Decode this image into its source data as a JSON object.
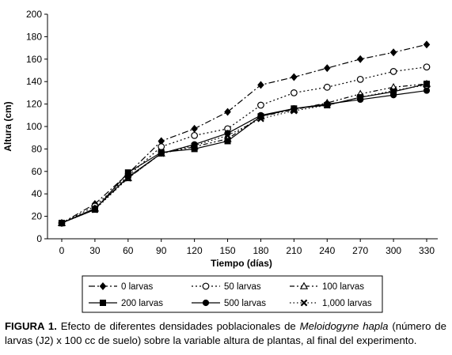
{
  "chart_data": {
    "type": "line",
    "xlabel": "Tiempo (días)",
    "ylabel": "Altura (cm)",
    "x": [
      0,
      30,
      60,
      90,
      120,
      150,
      180,
      210,
      240,
      270,
      300,
      330
    ],
    "xlim": [
      0,
      330
    ],
    "ylim": [
      0,
      200
    ],
    "yticks": [
      0,
      20,
      40,
      60,
      80,
      100,
      120,
      140,
      160,
      180,
      200
    ],
    "grid": false,
    "legend_position": "bottom",
    "series": [
      {
        "name": "0 larvas",
        "marker": "diamond",
        "dash": "8,3,2,3",
        "values": [
          14,
          31,
          58,
          87,
          98,
          113,
          137,
          144,
          152,
          160,
          166,
          173
        ]
      },
      {
        "name": "50 larvas",
        "marker": "circle-open",
        "dash": "2,3",
        "values": [
          14,
          29,
          56,
          82,
          92,
          98,
          119,
          130,
          135,
          142,
          149,
          153
        ]
      },
      {
        "name": "100 larvas",
        "marker": "triangle-open",
        "dash": "6,3,2,3,2,3",
        "values": [
          14,
          27,
          54,
          76,
          82,
          89,
          109,
          115,
          121,
          129,
          135,
          138
        ]
      },
      {
        "name": "200 larvas",
        "marker": "square",
        "dash": "",
        "values": [
          14,
          26,
          59,
          77,
          80,
          87,
          109,
          116,
          119,
          126,
          131,
          138
        ]
      },
      {
        "name": "500 larvas",
        "marker": "circle",
        "dash": "",
        "values": [
          14,
          27,
          55,
          76,
          84,
          94,
          110,
          116,
          120,
          124,
          128,
          132
        ]
      },
      {
        "name": "1,000 larvas",
        "marker": "x",
        "dash": "1.5,3",
        "values": [
          14,
          26,
          54,
          76,
          83,
          92,
          107,
          114,
          119,
          126,
          132,
          137
        ]
      }
    ]
  },
  "caption": {
    "label": "FIGURA 1.",
    "text_before": " Efecto de diferentes densidades poblacionales de ",
    "species": "Meloidogyne hapla",
    "text_after": " (número de larvas (J2) x 100 cc de suelo) sobre la variable altura de plantas, al final del experimento."
  }
}
